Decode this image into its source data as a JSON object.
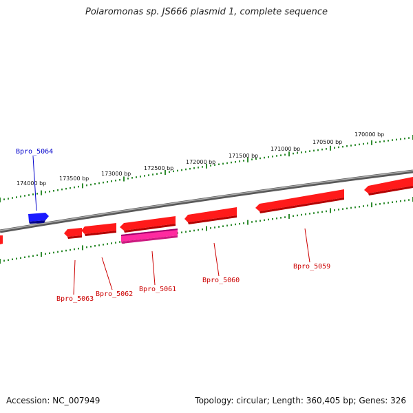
{
  "title": "Polaromonas sp. JS666 plasmid 1, complete sequence",
  "footer": {
    "accession": "Accession: NC_007949",
    "summary": "Topology: circular; Length: 360,405 bp; Genes: 326"
  },
  "colors": {
    "backbone": "#808080",
    "forward_tick": "#2e8b2e",
    "gene_reverse": "#ff1a1a",
    "gene_forward": "#1a1aff",
    "gene_special": "#ff2aa0",
    "label_reverse": "#cc0000",
    "label_forward": "#0000cc"
  },
  "scale_labels": [
    "174000 bp",
    "173500 bp",
    "173000 bp",
    "172500 bp",
    "172000 bp",
    "171500 bp",
    "171000 bp",
    "170500 bp",
    "170000 bp"
  ],
  "gene_labels": [
    {
      "name": "Bpro_5064",
      "strand": "forward"
    },
    {
      "name": "Bpro_5063",
      "strand": "reverse"
    },
    {
      "name": "Bpro_5062",
      "strand": "reverse"
    },
    {
      "name": "Bpro_5061",
      "strand": "reverse"
    },
    {
      "name": "Bpro_5060",
      "strand": "reverse"
    },
    {
      "name": "Bpro_5059",
      "strand": "reverse"
    }
  ]
}
